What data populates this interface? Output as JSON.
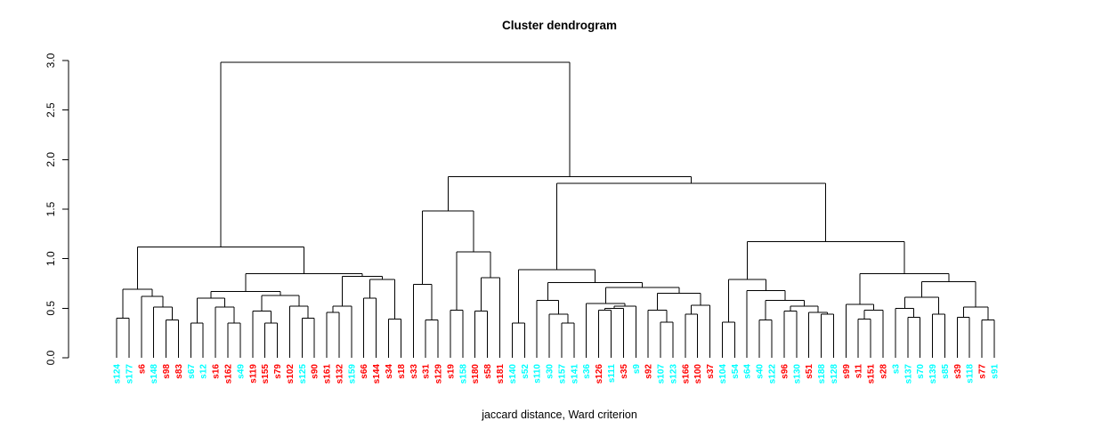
{
  "title": "Cluster dendrogram",
  "caption": "jaccard distance, Ward criterion",
  "y_axis": {
    "ticks": [
      "0.0",
      "0.5",
      "1.0",
      "1.5",
      "2.0",
      "2.5",
      "3.0"
    ],
    "min": 0,
    "max": 3.0
  },
  "palette": {
    "cyan": "#00ffff",
    "red": "#ff0000",
    "line": "#000000"
  },
  "chart_data": {
    "type": "dendrogram",
    "title": "Cluster dendrogram",
    "xlabel": "jaccard distance, Ward criterion",
    "ylim": [
      0,
      3.0
    ],
    "grid": false,
    "leaves": [
      {
        "label": "s124",
        "color": "cyan"
      },
      {
        "label": "s177",
        "color": "cyan"
      },
      {
        "label": "s6",
        "color": "red"
      },
      {
        "label": "s148",
        "color": "cyan"
      },
      {
        "label": "s98",
        "color": "red"
      },
      {
        "label": "s83",
        "color": "red"
      },
      {
        "label": "s67",
        "color": "cyan"
      },
      {
        "label": "s12",
        "color": "cyan"
      },
      {
        "label": "s16",
        "color": "red"
      },
      {
        "label": "s162",
        "color": "red"
      },
      {
        "label": "s49",
        "color": "cyan"
      },
      {
        "label": "s119",
        "color": "red"
      },
      {
        "label": "s155",
        "color": "red"
      },
      {
        "label": "s79",
        "color": "red"
      },
      {
        "label": "s102",
        "color": "red"
      },
      {
        "label": "s125",
        "color": "cyan"
      },
      {
        "label": "s90",
        "color": "red"
      },
      {
        "label": "s161",
        "color": "red"
      },
      {
        "label": "s132",
        "color": "red"
      },
      {
        "label": "s159",
        "color": "cyan"
      },
      {
        "label": "s66",
        "color": "red"
      },
      {
        "label": "s144",
        "color": "red"
      },
      {
        "label": "s34",
        "color": "red"
      },
      {
        "label": "s18",
        "color": "red"
      },
      {
        "label": "s33",
        "color": "red"
      },
      {
        "label": "s31",
        "color": "red"
      },
      {
        "label": "s129",
        "color": "red"
      },
      {
        "label": "s19",
        "color": "red"
      },
      {
        "label": "s158",
        "color": "cyan"
      },
      {
        "label": "s180",
        "color": "red"
      },
      {
        "label": "s58",
        "color": "red"
      },
      {
        "label": "s181",
        "color": "red"
      },
      {
        "label": "s140",
        "color": "cyan"
      },
      {
        "label": "s52",
        "color": "cyan"
      },
      {
        "label": "s110",
        "color": "cyan"
      },
      {
        "label": "s30",
        "color": "cyan"
      },
      {
        "label": "s157",
        "color": "cyan"
      },
      {
        "label": "s141",
        "color": "cyan"
      },
      {
        "label": "s36",
        "color": "cyan"
      },
      {
        "label": "s126",
        "color": "red"
      },
      {
        "label": "s111",
        "color": "cyan"
      },
      {
        "label": "s35",
        "color": "red"
      },
      {
        "label": "s9",
        "color": "cyan"
      },
      {
        "label": "s92",
        "color": "red"
      },
      {
        "label": "s107",
        "color": "cyan"
      },
      {
        "label": "s123",
        "color": "cyan"
      },
      {
        "label": "s166",
        "color": "red"
      },
      {
        "label": "s100",
        "color": "red"
      },
      {
        "label": "s37",
        "color": "red"
      },
      {
        "label": "s104",
        "color": "cyan"
      },
      {
        "label": "s54",
        "color": "cyan"
      },
      {
        "label": "s64",
        "color": "cyan"
      },
      {
        "label": "s40",
        "color": "cyan"
      },
      {
        "label": "s122",
        "color": "cyan"
      },
      {
        "label": "s96",
        "color": "red"
      },
      {
        "label": "s130",
        "color": "cyan"
      },
      {
        "label": "s51",
        "color": "red"
      },
      {
        "label": "s188",
        "color": "cyan"
      },
      {
        "label": "s128",
        "color": "cyan"
      },
      {
        "label": "s99",
        "color": "red"
      },
      {
        "label": "s11",
        "color": "red"
      },
      {
        "label": "s151",
        "color": "red"
      },
      {
        "label": "s28",
        "color": "red"
      },
      {
        "label": "s3",
        "color": "cyan"
      },
      {
        "label": "s137",
        "color": "cyan"
      },
      {
        "label": "s70",
        "color": "cyan"
      },
      {
        "label": "s139",
        "color": "cyan"
      },
      {
        "label": "s85",
        "color": "cyan"
      },
      {
        "label": "s39",
        "color": "red"
      },
      {
        "label": "s118",
        "color": "cyan"
      },
      {
        "label": "s77",
        "color": "red"
      },
      {
        "label": "s91",
        "color": "cyan"
      }
    ],
    "tree": {
      "h": 2.98,
      "c": [
        {
          "h": 1.12,
          "c": [
            {
              "h": 0.69,
              "c": [
                {
                  "h": 0.4,
                  "c": [
                    "s124",
                    "s177"
                  ]
                },
                {
                  "h": 0.62,
                  "c": [
                    "s6",
                    {
                      "h": 0.51,
                      "c": [
                        "s148",
                        {
                          "h": 0.38,
                          "c": [
                            "s98",
                            "s83"
                          ]
                        }
                      ]
                    }
                  ]
                }
              ]
            },
            {
              "h": 0.85,
              "c": [
                {
                  "h": 0.67,
                  "c": [
                    {
                      "h": 0.6,
                      "c": [
                        {
                          "h": 0.35,
                          "c": [
                            "s67",
                            "s12"
                          ]
                        },
                        {
                          "h": 0.51,
                          "c": [
                            "s16",
                            {
                              "h": 0.35,
                              "c": [
                                "s162",
                                "s49"
                              ]
                            }
                          ]
                        }
                      ]
                    },
                    {
                      "h": 0.63,
                      "c": [
                        {
                          "h": 0.47,
                          "c": [
                            "s119",
                            {
                              "h": 0.35,
                              "c": [
                                "s155",
                                "s79"
                              ]
                            }
                          ]
                        },
                        {
                          "h": 0.52,
                          "c": [
                            "s102",
                            {
                              "h": 0.4,
                              "c": [
                                "s125",
                                "s90"
                              ]
                            }
                          ]
                        }
                      ]
                    }
                  ]
                },
                {
                  "h": 0.82,
                  "c": [
                    {
                      "h": 0.52,
                      "c": [
                        {
                          "h": 0.46,
                          "c": [
                            "s161",
                            "s132"
                          ]
                        },
                        "s159"
                      ]
                    },
                    {
                      "h": 0.79,
                      "c": [
                        {
                          "h": 0.6,
                          "c": [
                            "s66",
                            "s144"
                          ]
                        },
                        {
                          "h": 0.39,
                          "c": [
                            "s34",
                            "s18"
                          ]
                        }
                      ]
                    }
                  ]
                }
              ]
            }
          ]
        },
        {
          "h": 1.83,
          "c": [
            {
              "h": 1.48,
              "c": [
                {
                  "h": 0.74,
                  "c": [
                    "s33",
                    {
                      "h": 0.38,
                      "c": [
                        "s31",
                        "s129"
                      ]
                    }
                  ]
                },
                {
                  "h": 1.07,
                  "c": [
                    {
                      "h": 0.48,
                      "c": [
                        "s19",
                        "s158"
                      ]
                    },
                    {
                      "h": 0.81,
                      "c": [
                        {
                          "h": 0.47,
                          "c": [
                            "s180",
                            "s58"
                          ]
                        },
                        "s181"
                      ]
                    }
                  ]
                }
              ]
            },
            {
              "h": 1.76,
              "c": [
                {
                  "h": 0.89,
                  "c": [
                    {
                      "h": 0.35,
                      "c": [
                        "s140",
                        "s52"
                      ]
                    },
                    {
                      "h": 0.76,
                      "c": [
                        {
                          "h": 0.58,
                          "c": [
                            "s110",
                            {
                              "h": 0.44,
                              "c": [
                                "s30",
                                {
                                  "h": 0.35,
                                  "c": [
                                    "s157",
                                    "s141"
                                  ]
                                }
                              ]
                            }
                          ]
                        },
                        {
                          "h": 0.71,
                          "c": [
                            {
                              "h": 0.55,
                              "c": [
                                "s36",
                                {
                                  "h": 0.52,
                                  "c": [
                                    {
                                      "h": 0.5,
                                      "c": [
                                        {
                                          "h": 0.48,
                                          "c": [
                                            "s126",
                                            "s111"
                                          ]
                                        },
                                        "s35"
                                      ]
                                    },
                                    "s9"
                                  ]
                                }
                              ]
                            },
                            {
                              "h": 0.65,
                              "c": [
                                {
                                  "h": 0.48,
                                  "c": [
                                    "s92",
                                    {
                                      "h": 0.36,
                                      "c": [
                                        "s107",
                                        "s123"
                                      ]
                                    }
                                  ]
                                },
                                {
                                  "h": 0.53,
                                  "c": [
                                    {
                                      "h": 0.44,
                                      "c": [
                                        "s166",
                                        "s100"
                                      ]
                                    },
                                    "s37"
                                  ]
                                }
                              ]
                            }
                          ]
                        }
                      ]
                    }
                  ]
                },
                {
                  "h": 1.17,
                  "c": [
                    {
                      "h": 0.79,
                      "c": [
                        {
                          "h": 0.36,
                          "c": [
                            "s104",
                            "s54"
                          ]
                        },
                        {
                          "h": 0.68,
                          "c": [
                            "s64",
                            {
                              "h": 0.58,
                              "c": [
                                {
                                  "h": 0.38,
                                  "c": [
                                    "s40",
                                    "s122"
                                  ]
                                },
                                {
                                  "h": 0.52,
                                  "c": [
                                    {
                                      "h": 0.47,
                                      "c": [
                                        "s96",
                                        "s130"
                                      ]
                                    },
                                    {
                                      "h": 0.46,
                                      "c": [
                                        "s51",
                                        {
                                          "h": 0.44,
                                          "c": [
                                            "s188",
                                            "s128"
                                          ]
                                        }
                                      ]
                                    }
                                  ]
                                }
                              ]
                            }
                          ]
                        }
                      ]
                    },
                    {
                      "h": 0.85,
                      "c": [
                        {
                          "h": 0.54,
                          "c": [
                            "s99",
                            {
                              "h": 0.48,
                              "c": [
                                {
                                  "h": 0.39,
                                  "c": [
                                    "s11",
                                    "s151"
                                  ]
                                },
                                "s28"
                              ]
                            }
                          ]
                        },
                        {
                          "h": 0.77,
                          "c": [
                            {
                              "h": 0.61,
                              "c": [
                                {
                                  "h": 0.5,
                                  "c": [
                                    "s3",
                                    {
                                      "h": 0.41,
                                      "c": [
                                        "s137",
                                        "s70"
                                      ]
                                    }
                                  ]
                                },
                                {
                                  "h": 0.44,
                                  "c": [
                                    "s139",
                                    "s85"
                                  ]
                                }
                              ]
                            },
                            {
                              "h": 0.51,
                              "c": [
                                {
                                  "h": 0.41,
                                  "c": [
                                    "s39",
                                    "s118"
                                  ]
                                },
                                {
                                  "h": 0.38,
                                  "c": [
                                    "s77",
                                    "s91"
                                  ]
                                }
                              ]
                            }
                          ]
                        }
                      ]
                    }
                  ]
                }
              ]
            }
          ]
        }
      ]
    }
  }
}
